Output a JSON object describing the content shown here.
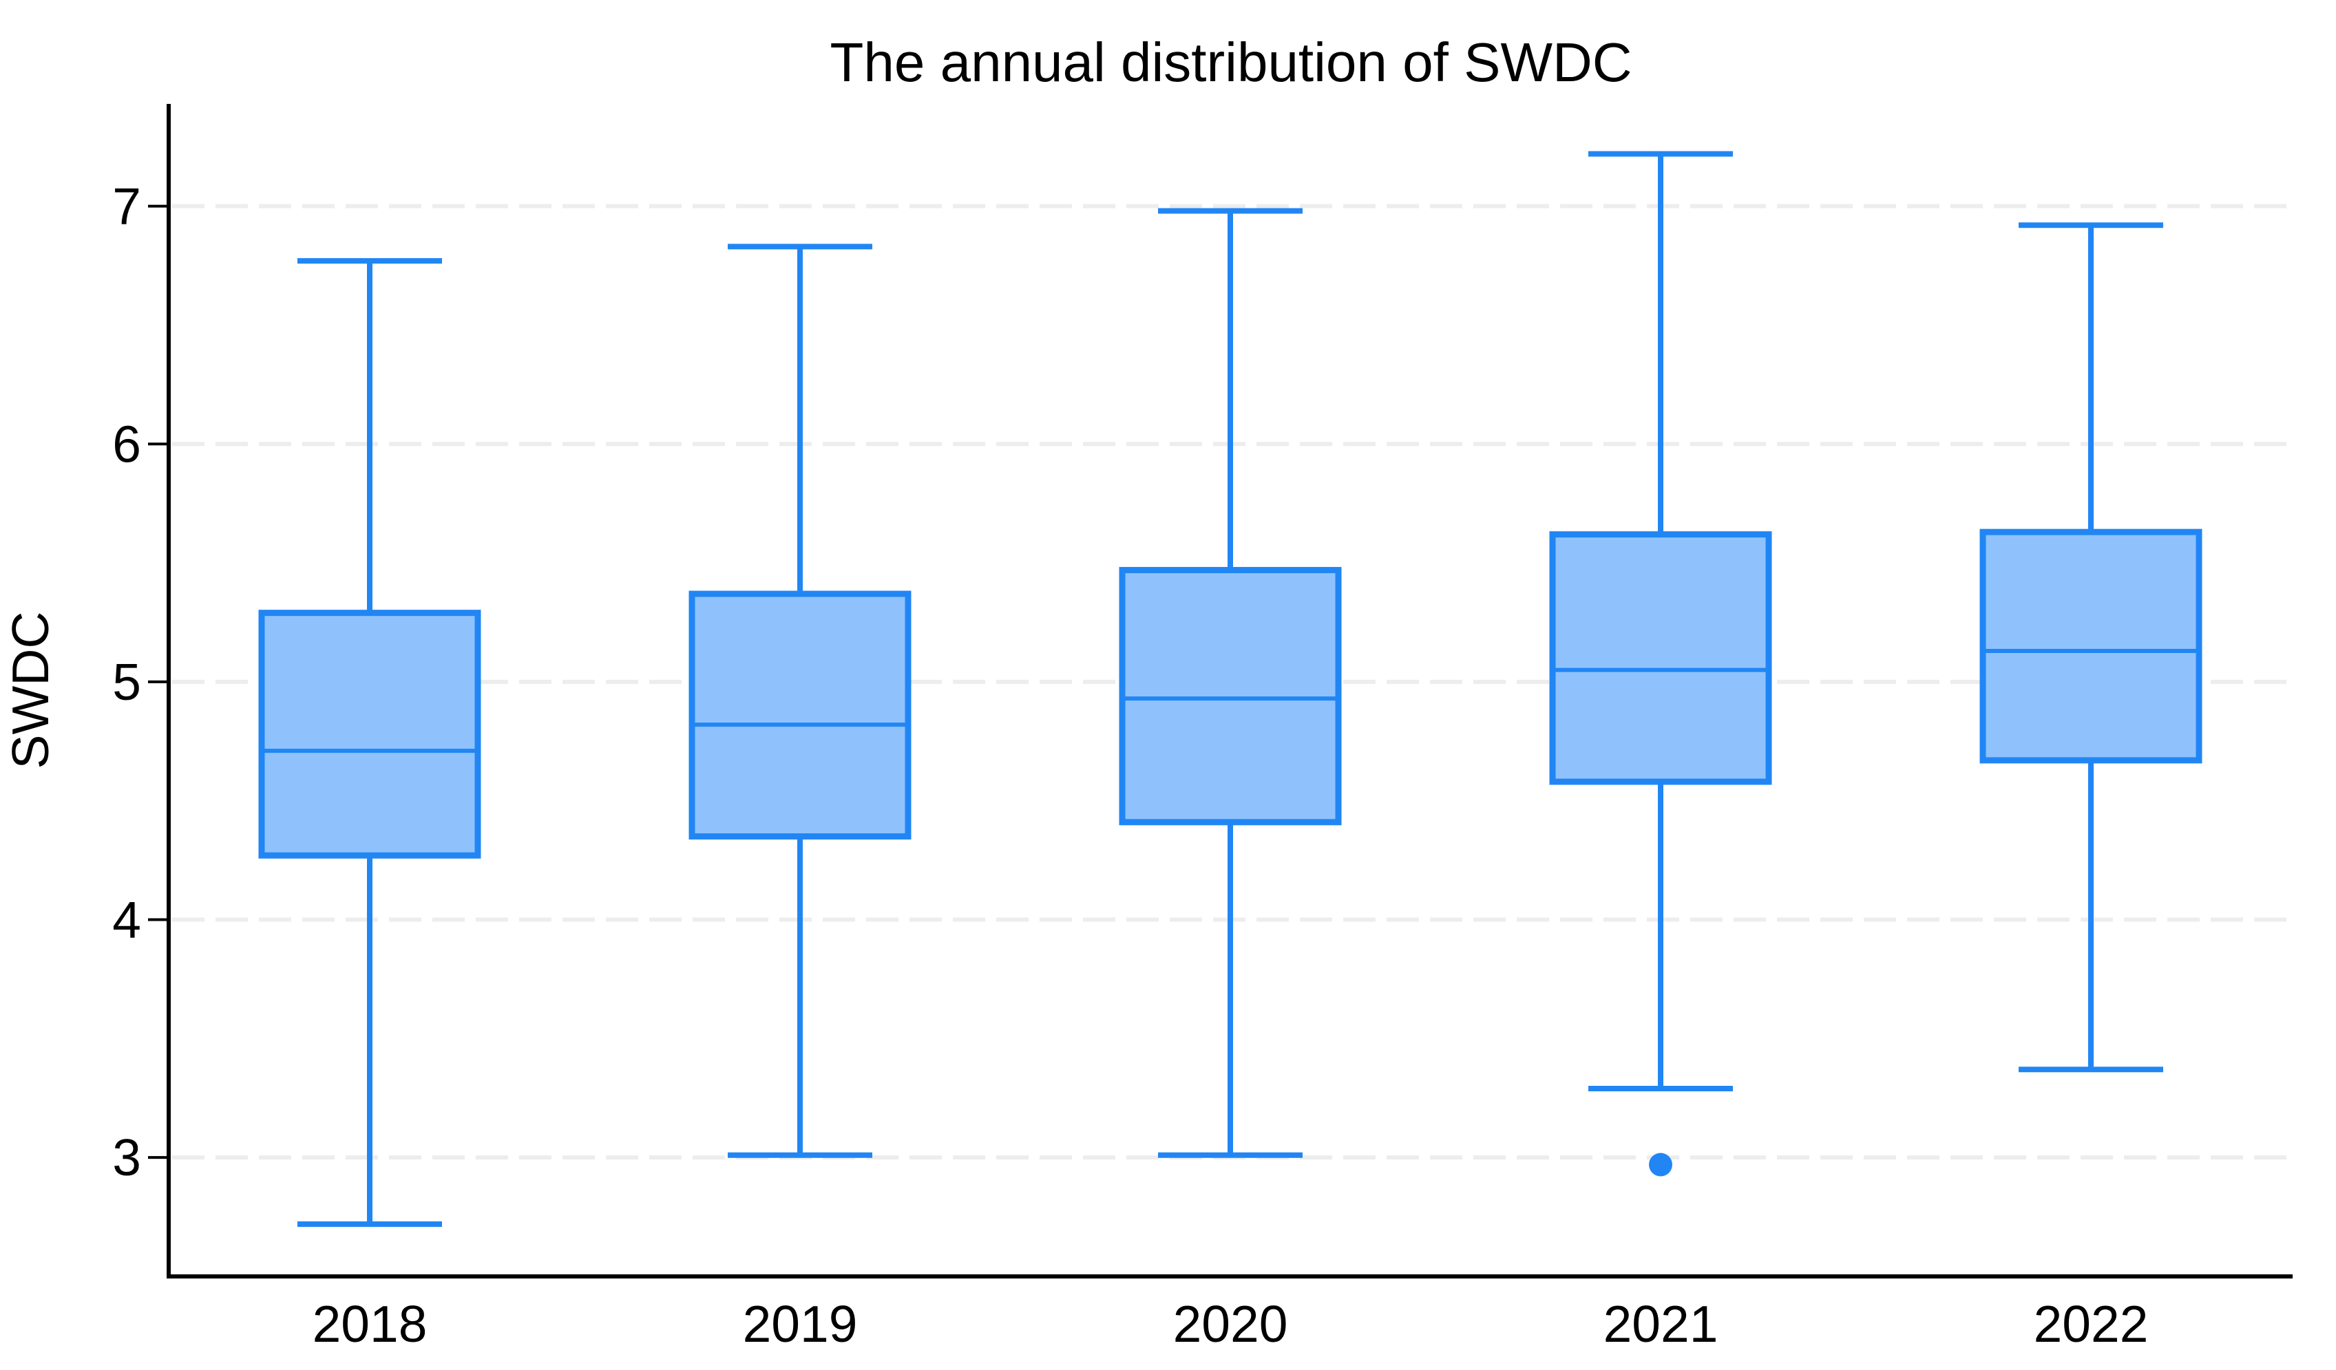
{
  "chart_data": {
    "type": "boxplot",
    "title": "The annual distribution of SWDC",
    "xlabel": "",
    "ylabel": "SWDC",
    "categories": [
      "2018",
      "2019",
      "2020",
      "2021",
      "2022"
    ],
    "series": [
      {
        "category": "2018",
        "whisker_low": 2.72,
        "q1": 4.27,
        "median": 4.71,
        "q3": 5.29,
        "whisker_high": 6.77,
        "outliers": []
      },
      {
        "category": "2019",
        "whisker_low": 3.01,
        "q1": 4.35,
        "median": 4.82,
        "q3": 5.37,
        "whisker_high": 6.83,
        "outliers": []
      },
      {
        "category": "2020",
        "whisker_low": 3.01,
        "q1": 4.41,
        "median": 4.93,
        "q3": 5.47,
        "whisker_high": 6.98,
        "outliers": []
      },
      {
        "category": "2021",
        "whisker_low": 3.29,
        "q1": 4.58,
        "median": 5.05,
        "q3": 5.62,
        "whisker_high": 7.22,
        "outliers": [
          2.97
        ]
      },
      {
        "category": "2022",
        "whisker_low": 3.37,
        "q1": 4.67,
        "median": 5.13,
        "q3": 5.63,
        "whisker_high": 6.92,
        "outliers": []
      }
    ],
    "yticks": [
      3,
      4,
      5,
      6,
      7
    ],
    "ylim": [
      2.5,
      7.43
    ],
    "grid": "horizontal dashed lines at each y tick",
    "legend": "none",
    "colors": {
      "box_fill": "#8FC2FC",
      "box_stroke": "#2186F4",
      "outlier": "#2186F4",
      "grid_line": "#EDEDED",
      "axis_line": "#000000",
      "text": "#000000"
    }
  }
}
